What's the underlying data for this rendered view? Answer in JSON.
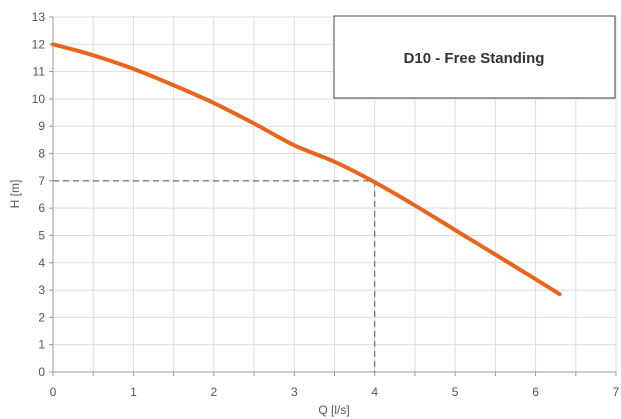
{
  "chart_data": {
    "type": "line",
    "title": "D10 - Free Standing",
    "xlabel": "Q [l/s]",
    "ylabel": "H [m]",
    "xlim": [
      0,
      7
    ],
    "ylim": [
      0,
      13
    ],
    "xticks": [
      0,
      1,
      2,
      3,
      4,
      5,
      6,
      7
    ],
    "yticks": [
      0,
      1,
      2,
      3,
      4,
      5,
      6,
      7,
      8,
      9,
      10,
      11,
      12,
      13
    ],
    "xtick_labels": [
      "0",
      "1",
      "2",
      "3",
      "4",
      "5",
      "6",
      "7"
    ],
    "ytick_labels": [
      "0",
      "1",
      "2",
      "3",
      "4",
      "5",
      "6",
      "7",
      "8",
      "9",
      "10",
      "11",
      "12",
      "13"
    ],
    "grid": true,
    "legend_position": "top-right",
    "series": [
      {
        "name": "D10 - Free Standing",
        "color": "#e8651e",
        "x": [
          0,
          0.5,
          1,
          1.5,
          2,
          2.5,
          3,
          3.5,
          4,
          4.5,
          5,
          5.5,
          6,
          6.3
        ],
        "y": [
          12,
          11.6,
          11.1,
          10.5,
          9.85,
          9.1,
          8.3,
          7.7,
          6.95,
          6.1,
          5.2,
          4.3,
          3.4,
          2.85
        ]
      }
    ],
    "operating_point": {
      "x": 4,
      "y": 7
    }
  }
}
